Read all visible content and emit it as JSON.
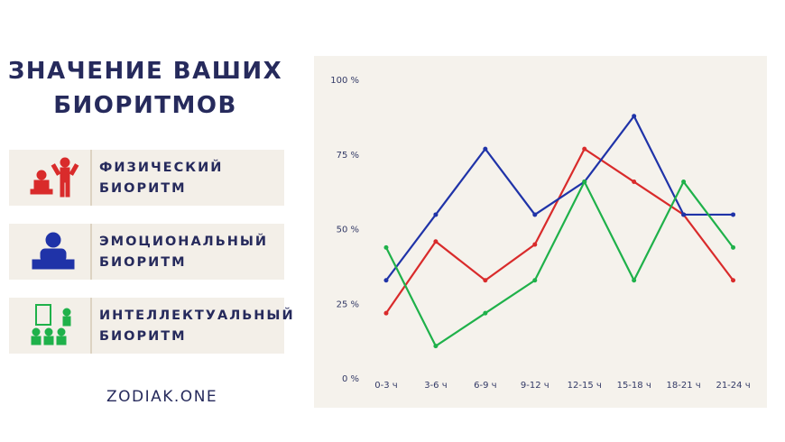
{
  "title": "ЗНАЧЕНИЕ ВАШИХ БИОРИТМОВ",
  "brand": "ZODIAK.ONE",
  "chart_data": {
    "type": "line",
    "categories": [
      "0-3 ч",
      "3-6 ч",
      "6-9 ч",
      "9-12 ч",
      "12-15 ч",
      "15-18 ч",
      "18-21 ч",
      "21-24 ч"
    ],
    "series": [
      {
        "name": "ФИЗИЧЕСКИЙ БИОРИТМ",
        "color": "#d92b2b",
        "values": [
          22,
          46,
          33,
          45,
          77,
          66,
          55,
          33
        ]
      },
      {
        "name": "ЭМОЦИОНАЛЬНЫЙ БИОРИТМ",
        "color": "#1f33a8",
        "values": [
          33,
          55,
          77,
          55,
          66,
          88,
          55,
          55
        ]
      },
      {
        "name": "ИНТЕЛЛЕКТУАЛЬНЫЙ БИОРИТМ",
        "color": "#1fb14a",
        "values": [
          44,
          11,
          22,
          33,
          66,
          33,
          66,
          44
        ]
      }
    ],
    "ylim": [
      0,
      100
    ],
    "yticks": [
      {
        "value": 0,
        "label": "0 %"
      },
      {
        "value": 25,
        "label": "25 %"
      },
      {
        "value": 50,
        "label": "50 %"
      },
      {
        "value": 75,
        "label": "75 %"
      },
      {
        "value": 100,
        "label": "100 %"
      }
    ],
    "grid": false
  }
}
